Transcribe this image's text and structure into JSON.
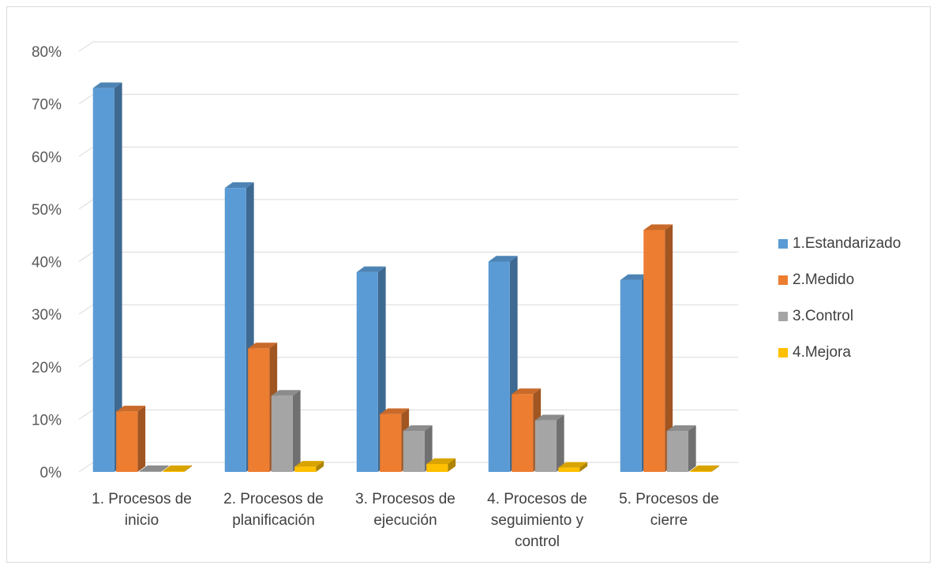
{
  "chart_data": {
    "type": "bar",
    "style": "3d-clustered-column",
    "title": "",
    "xlabel": "",
    "ylabel": "",
    "ylim": [
      0,
      0.8
    ],
    "yticks": [
      "0%",
      "10%",
      "20%",
      "30%",
      "40%",
      "50%",
      "60%",
      "70%",
      "80%"
    ],
    "grid": true,
    "legend_position": "right",
    "categories": [
      [
        "1. Procesos de",
        "inicio"
      ],
      [
        "2. Procesos de",
        "planificación"
      ],
      [
        "3. Procesos de",
        "ejecución"
      ],
      [
        "4. Procesos de",
        "seguimiento y",
        "control"
      ],
      [
        "5. Procesos de",
        "cierre"
      ]
    ],
    "series": [
      {
        "name": "1.Estandarizado",
        "color": "#5b9bd5",
        "values": [
          0.73,
          0.54,
          0.38,
          0.4,
          0.365
        ]
      },
      {
        "name": "2.Medido",
        "color": "#ed7d31",
        "values": [
          0.115,
          0.235,
          0.11,
          0.148,
          0.46
        ]
      },
      {
        "name": "3.Control",
        "color": "#a5a5a5",
        "values": [
          0.0,
          0.145,
          0.078,
          0.098,
          0.078
        ]
      },
      {
        "name": "4.Mejora",
        "color": "#ffc000",
        "values": [
          0.0,
          0.01,
          0.015,
          0.008,
          0.0
        ]
      }
    ]
  }
}
